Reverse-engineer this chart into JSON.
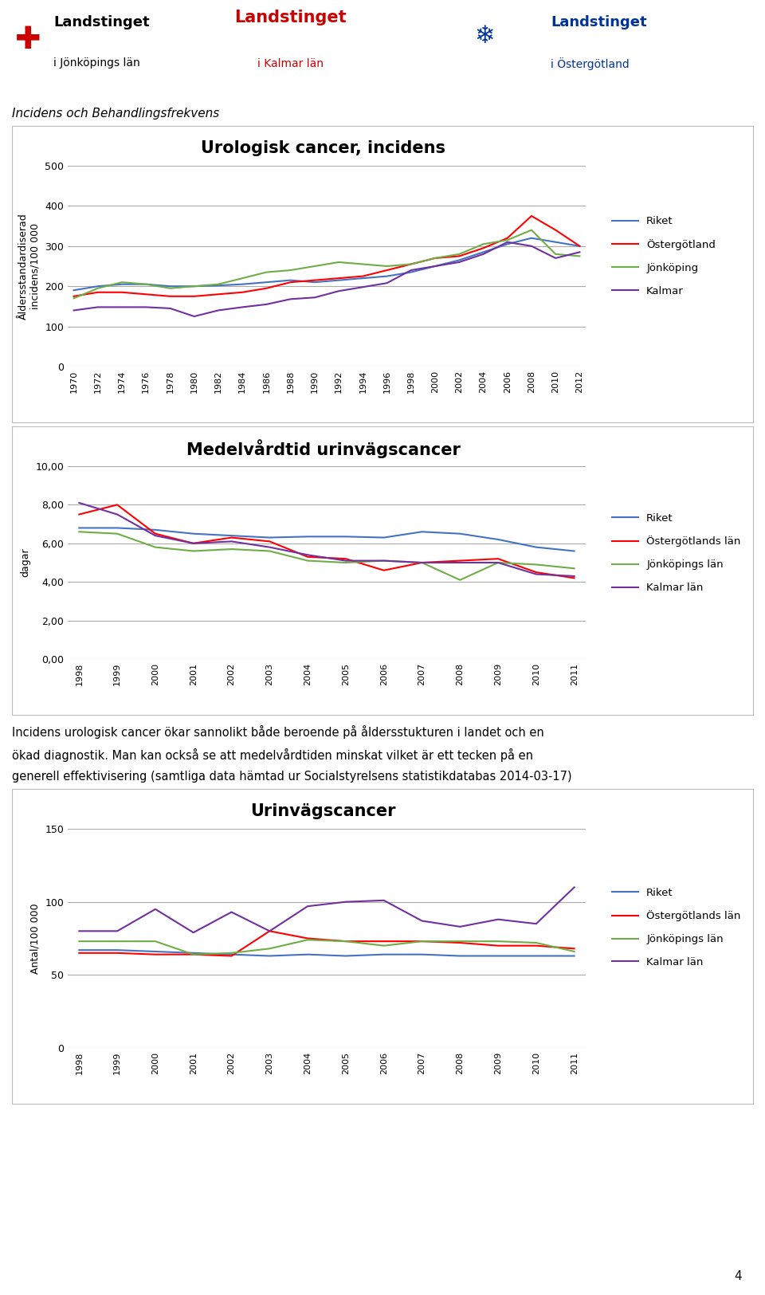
{
  "chart1_title": "Urologisk cancer, incidens",
  "chart1_ylabel": "Åldersstandardiserad\nincidens/100 000",
  "chart1_years": [
    1970,
    1972,
    1974,
    1976,
    1978,
    1980,
    1982,
    1984,
    1986,
    1988,
    1990,
    1992,
    1994,
    1996,
    1998,
    2000,
    2002,
    2004,
    2006,
    2008,
    2010,
    2012
  ],
  "chart1_riket": [
    190,
    200,
    205,
    205,
    200,
    200,
    202,
    205,
    210,
    215,
    210,
    215,
    220,
    225,
    235,
    250,
    265,
    285,
    305,
    320,
    310,
    300
  ],
  "chart1_ostergotland": [
    175,
    185,
    185,
    180,
    175,
    175,
    180,
    185,
    195,
    210,
    215,
    220,
    225,
    240,
    255,
    270,
    275,
    295,
    320,
    375,
    340,
    300
  ],
  "chart1_jonkoping": [
    170,
    195,
    210,
    205,
    195,
    200,
    205,
    220,
    235,
    240,
    250,
    260,
    255,
    250,
    255,
    270,
    280,
    305,
    315,
    340,
    280,
    275
  ],
  "chart1_kalmar": [
    140,
    148,
    148,
    148,
    145,
    125,
    140,
    148,
    155,
    168,
    172,
    188,
    198,
    208,
    240,
    250,
    260,
    280,
    310,
    300,
    270,
    285
  ],
  "chart1_ylim": [
    0,
    500
  ],
  "chart1_yticks": [
    0,
    100,
    200,
    300,
    400,
    500
  ],
  "chart2_title": "Medelvårdtid urinvägscancer",
  "chart2_ylabel": "dagar",
  "chart2_years": [
    1998,
    1999,
    2000,
    2001,
    2002,
    2003,
    2004,
    2005,
    2006,
    2007,
    2008,
    2009,
    2010,
    2011
  ],
  "chart2_riket": [
    6.8,
    6.8,
    6.7,
    6.5,
    6.4,
    6.3,
    6.35,
    6.35,
    6.3,
    6.6,
    6.5,
    6.2,
    5.8,
    5.6
  ],
  "chart2_ostergotland": [
    7.5,
    8.0,
    6.5,
    6.0,
    6.3,
    6.1,
    5.3,
    5.2,
    4.6,
    5.0,
    5.1,
    5.2,
    4.5,
    4.2
  ],
  "chart2_jonkoping": [
    6.6,
    6.5,
    5.8,
    5.6,
    5.7,
    5.6,
    5.1,
    5.0,
    5.1,
    5.0,
    4.1,
    5.0,
    4.9,
    4.7
  ],
  "chart2_kalmar": [
    8.1,
    7.5,
    6.4,
    6.0,
    6.1,
    5.8,
    5.4,
    5.1,
    5.1,
    5.0,
    5.0,
    5.0,
    4.4,
    4.3
  ],
  "chart2_ylim": [
    0,
    10
  ],
  "chart2_yticks": [
    0.0,
    2.0,
    4.0,
    6.0,
    8.0,
    10.0
  ],
  "chart2_yticklabels": [
    "0,00",
    "2,00",
    "4,00",
    "6,00",
    "8,00",
    "10,00"
  ],
  "chart3_title": "Urinvägscancer",
  "chart3_ylabel": "Antal/100 000",
  "chart3_years": [
    1998,
    1999,
    2000,
    2001,
    2002,
    2003,
    2004,
    2005,
    2006,
    2007,
    2008,
    2009,
    2010,
    2011
  ],
  "chart3_riket": [
    67,
    67,
    66,
    65,
    64,
    63,
    64,
    63,
    64,
    64,
    63,
    63,
    63,
    63
  ],
  "chart3_ostergotland": [
    65,
    65,
    64,
    64,
    63,
    80,
    75,
    73,
    73,
    73,
    72,
    70,
    70,
    68
  ],
  "chart3_jonkoping": [
    73,
    73,
    73,
    64,
    65,
    68,
    74,
    73,
    70,
    73,
    73,
    73,
    72,
    66
  ],
  "chart3_kalmar": [
    80,
    80,
    95,
    79,
    93,
    80,
    97,
    100,
    101,
    87,
    83,
    88,
    85,
    110
  ],
  "chart3_ylim": [
    0,
    150
  ],
  "chart3_yticks": [
    0,
    50,
    100,
    150
  ],
  "color_riket": "#4472C4",
  "color_ostergotland": "#FF0000",
  "color_jonkoping": "#70AD47",
  "color_kalmar": "#7030A0",
  "header_subtitle": "Incidens och Behandlingsfrekvens",
  "body_line1": "Incidens urologisk cancer ökar sannolikt både beroende på åldersstukturen i landet och en",
  "body_line2": "ökad diagnostik. Man kan också se att medelvårdtiden minskat vilket är ett tecken på en",
  "body_line3": "generell effektivisering (samtliga data hämtad ur Socialstyrelsens statistikdatabas 2014-03-17)",
  "page_number": "4",
  "background_color": "#FFFFFF",
  "border_color": "#BBBBBB",
  "grid_color": "#AAAAAA"
}
